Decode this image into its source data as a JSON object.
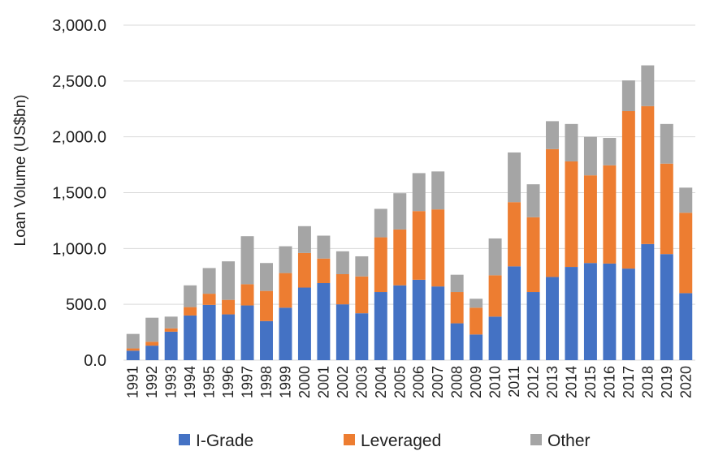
{
  "chart_data": {
    "type": "bar",
    "stacked": true,
    "ylabel": "Loan Volume (US$bn)",
    "xlabel": "",
    "ylim": [
      0,
      3000
    ],
    "yticks": [
      "0.0",
      "500.0",
      "1,000.0",
      "1,500.0",
      "2,000.0",
      "2,500.0",
      "3,000.0"
    ],
    "ytick_values": [
      0,
      500,
      1000,
      1500,
      2000,
      2500,
      3000
    ],
    "grid": true,
    "legend_position": "bottom",
    "categories": [
      "1991",
      "1992",
      "1993",
      "1994",
      "1995",
      "1996",
      "1997",
      "1998",
      "1999",
      "2000",
      "2001",
      "2002",
      "2003",
      "2004",
      "2005",
      "2006",
      "2007",
      "2008",
      "2009",
      "2010",
      "2011",
      "2012",
      "2013",
      "2014",
      "2015",
      "2016",
      "2017",
      "2018",
      "2019",
      "2020"
    ],
    "series": [
      {
        "name": "I-Grade",
        "color": "#4472C4",
        "values": [
          85,
          130,
          255,
          400,
          495,
          410,
          490,
          350,
          470,
          650,
          690,
          500,
          420,
          610,
          670,
          720,
          660,
          330,
          230,
          390,
          840,
          610,
          745,
          835,
          870,
          865,
          820,
          1040,
          950,
          600
        ]
      },
      {
        "name": "Leveraged",
        "color": "#ED7D31",
        "values": [
          20,
          35,
          30,
          75,
          100,
          130,
          190,
          270,
          310,
          310,
          220,
          270,
          330,
          490,
          500,
          615,
          690,
          280,
          240,
          370,
          575,
          670,
          1145,
          945,
          785,
          880,
          1410,
          1235,
          810,
          720
        ]
      },
      {
        "name": "Other",
        "color": "#A5A5A5",
        "values": [
          130,
          215,
          105,
          195,
          230,
          345,
          430,
          250,
          240,
          240,
          205,
          205,
          180,
          255,
          325,
          340,
          340,
          155,
          80,
          330,
          445,
          295,
          250,
          335,
          345,
          245,
          275,
          365,
          355,
          225
        ]
      }
    ]
  }
}
